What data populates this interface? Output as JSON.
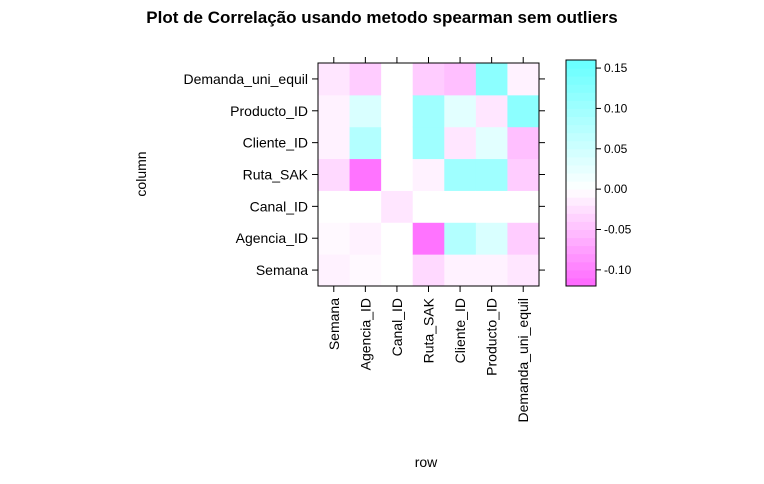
{
  "chart_data": {
    "type": "heatmap",
    "title": "Plot de Correlação usando metodo spearman sem outliers",
    "xlabel": "row",
    "ylabel": "column",
    "x_categories": [
      "Semana",
      "Agencia_ID",
      "Canal_ID",
      "Ruta_SAK",
      "Cliente_ID",
      "Producto_ID",
      "Demanda_uni_equil"
    ],
    "y_categories": [
      "Semana",
      "Agencia_ID",
      "Canal_ID",
      "Ruta_SAK",
      "Cliente_ID",
      "Producto_ID",
      "Demanda_uni_equil"
    ],
    "values": [
      [
        -0.01,
        -0.005,
        0.0,
        -0.03,
        -0.01,
        -0.01,
        -0.02
      ],
      [
        -0.005,
        -0.01,
        0.0,
        -0.11,
        0.08,
        0.04,
        -0.04
      ],
      [
        0.0,
        0.0,
        -0.02,
        0.0,
        0.0,
        0.0,
        0.0
      ],
      [
        -0.03,
        -0.11,
        0.0,
        -0.01,
        0.1,
        0.1,
        -0.04
      ],
      [
        -0.01,
        0.08,
        0.0,
        0.1,
        -0.02,
        0.03,
        -0.05
      ],
      [
        -0.01,
        0.04,
        0.0,
        0.1,
        0.03,
        -0.02,
        0.12
      ],
      [
        -0.02,
        -0.04,
        0.0,
        -0.04,
        -0.05,
        0.12,
        -0.01
      ]
    ],
    "colorbar": {
      "range": [
        -0.12,
        0.16
      ],
      "ticks": [
        -0.1,
        -0.05,
        0.0,
        0.05,
        0.1,
        0.15
      ],
      "tick_labels": [
        "-0.10",
        "-0.05",
        "0.00",
        "0.05",
        "0.10",
        "0.15"
      ],
      "low_color": "#ff66ff",
      "mid_color": "#ffffff",
      "high_color": "#66ffff"
    }
  }
}
